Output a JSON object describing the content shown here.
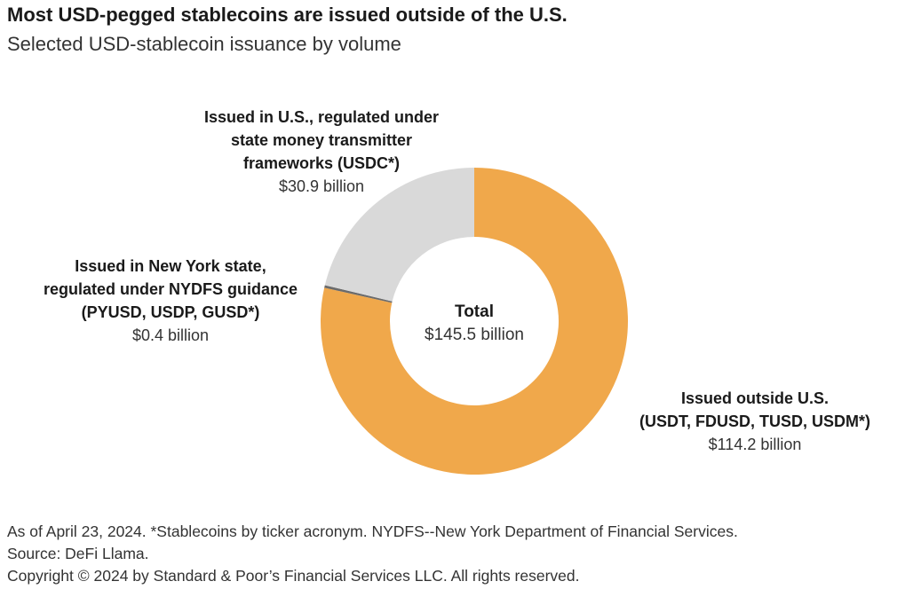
{
  "header": {
    "title": "Most USD-pegged stablecoins are issued outside of the U.S.",
    "subtitle": "Selected USD-stablecoin issuance by volume"
  },
  "chart_data": {
    "type": "pie",
    "donut": true,
    "unit": "$ billion",
    "center_label": "Total",
    "center_value": "$145.5 billion",
    "slices": [
      {
        "label": "Issued outside U.S. (USDT, FDUSD, TUSD, USDM*)",
        "value": 114.2,
        "value_label": "$114.2 billion",
        "color": "#f0a84b"
      },
      {
        "label": "Issued in New York state, regulated under NYDFS guidance (PYUSD, USDP, GUSD*)",
        "value": 0.4,
        "value_label": "$0.4 billion",
        "color": "#6b6b6b"
      },
      {
        "label": "Issued in U.S., regulated under state money transmitter frameworks (USDC*)",
        "value": 30.9,
        "value_label": "$30.9 billion",
        "color": "#d9d9d9"
      }
    ]
  },
  "labels": {
    "outside_lines": [
      "Issued outside U.S.",
      "(USDT, FDUSD, TUSD, USDM*)"
    ],
    "ny_lines": [
      "Issued in New York state,",
      "regulated under NYDFS guidance",
      "(PYUSD, USDP, GUSD*)"
    ],
    "us_lines": [
      "Issued in U.S., regulated under",
      "state money transmitter",
      "frameworks (USDC*)"
    ]
  },
  "footer": {
    "note": "As of April 23, 2024. *Stablecoins by ticker acronym. NYDFS--New York Department of Financial Services.",
    "source": "Source: DeFi Llama.",
    "copyright": "Copyright © 2024 by Standard & Poor’s Financial Services LLC. All rights reserved."
  }
}
